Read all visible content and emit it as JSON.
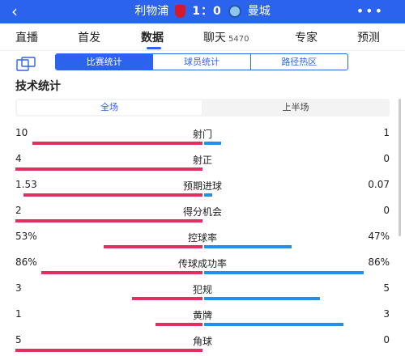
{
  "header": {
    "back_icon": "‹",
    "home_team": "利物浦",
    "score": "1：0",
    "away_team": "曼城",
    "more_icon": "•••"
  },
  "tabs": [
    {
      "label": "直播"
    },
    {
      "label": "首发"
    },
    {
      "label": "数据",
      "active": true
    },
    {
      "label": "聊天",
      "count": "5470"
    },
    {
      "label": "专家"
    },
    {
      "label": "预测"
    }
  ],
  "subtabs": [
    {
      "label": "比赛统计",
      "active": true
    },
    {
      "label": "球员统计"
    },
    {
      "label": "路径热区"
    }
  ],
  "section_title": "技术统计",
  "period": {
    "active": "全场",
    "inactive": "上半场"
  },
  "colors": {
    "home": "#e0305f",
    "away": "#2b8de0",
    "accent": "#2b62ee"
  },
  "stats": [
    {
      "label": "射门",
      "home": "10",
      "away": "1",
      "home_share": 0.909,
      "away_share": 0.091
    },
    {
      "label": "射正",
      "home": "4",
      "away": "0",
      "home_share": 1.0,
      "away_share": 0.0
    },
    {
      "label": "预期进球",
      "home": "1.53",
      "away": "0.07",
      "home_share": 0.956,
      "away_share": 0.044
    },
    {
      "label": "得分机会",
      "home": "2",
      "away": "0",
      "home_share": 1.0,
      "away_share": 0.0
    },
    {
      "label": "控球率",
      "home": "53%",
      "away": "47%",
      "home_share": 0.53,
      "away_share": 0.47
    },
    {
      "label": "传球成功率",
      "home": "86%",
      "away": "86%",
      "home_share": 0.86,
      "away_share": 0.86
    },
    {
      "label": "犯规",
      "home": "3",
      "away": "5",
      "home_share": 0.375,
      "away_share": 0.625
    },
    {
      "label": "黄牌",
      "home": "1",
      "away": "3",
      "home_share": 0.25,
      "away_share": 0.75
    },
    {
      "label": "角球",
      "home": "5",
      "away": "0",
      "home_share": 1.0,
      "away_share": 0.0
    }
  ]
}
